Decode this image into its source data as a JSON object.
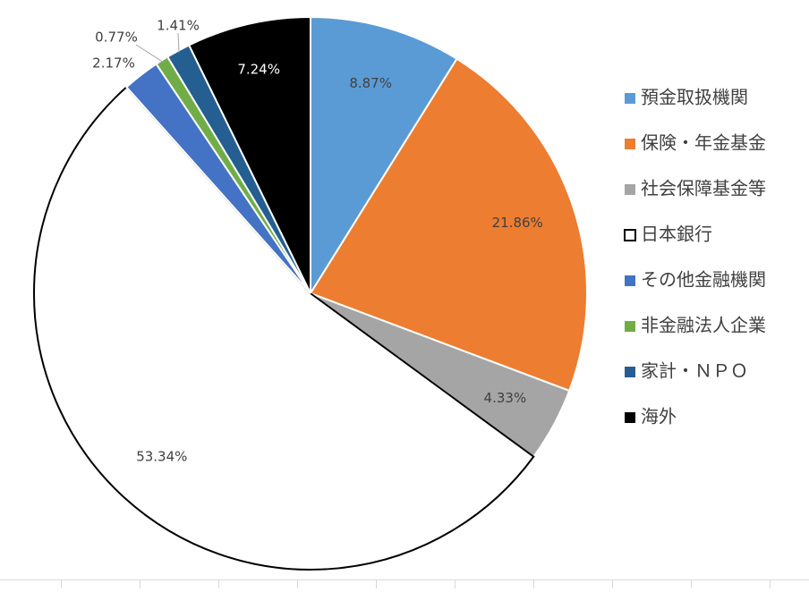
{
  "chart_data": {
    "type": "pie",
    "title": "",
    "legend_position": "right",
    "categories": [
      "預金取扱機関",
      "保険・年金基金",
      "社会保障基金等",
      "日本銀行",
      "その他金融機関",
      "非金融法人企業",
      "家計・ＮＰＯ",
      "海外"
    ],
    "values": [
      8.87,
      21.86,
      4.33,
      53.34,
      2.17,
      0.77,
      1.41,
      7.24
    ],
    "data_labels": [
      "8.87%",
      "21.86%",
      "4.33%",
      "53.34%",
      "2.17%",
      "0.77%",
      "1.41%",
      "7.24%"
    ],
    "colors": [
      "#5b9bd5",
      "#ed7d31",
      "#a5a5a5",
      "#ffffff",
      "#4472c4",
      "#70ad47",
      "#255e91",
      "#000000"
    ]
  }
}
